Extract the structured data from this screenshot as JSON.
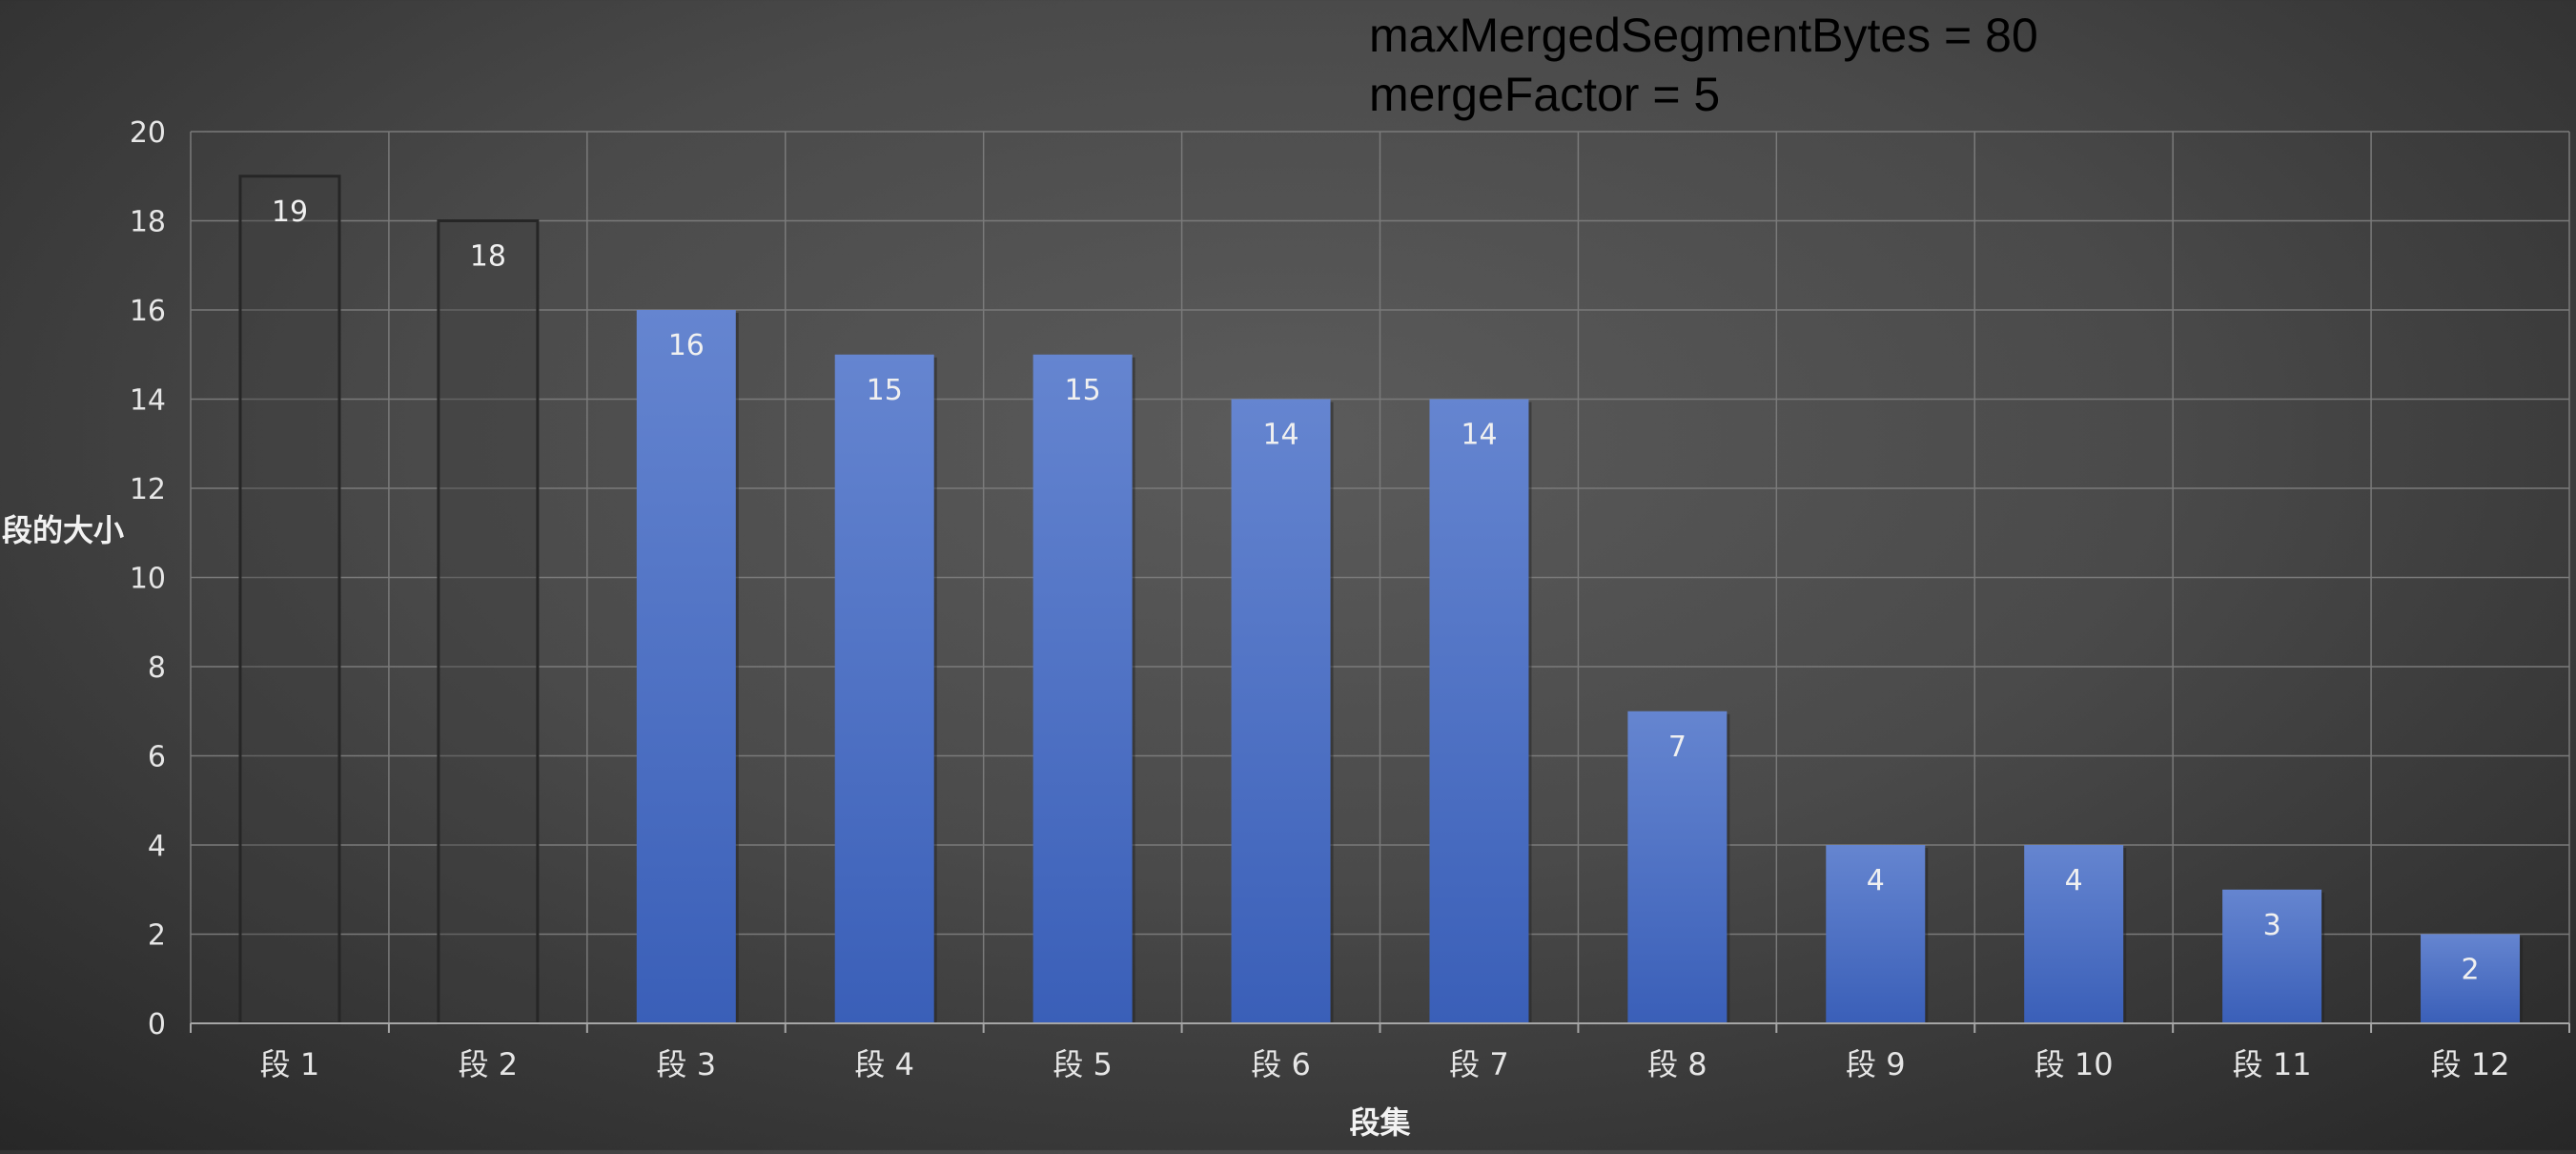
{
  "chart_data": {
    "type": "bar",
    "categories": [
      "段 1",
      "段 2",
      "段 3",
      "段 4",
      "段 5",
      "段 6",
      "段 7",
      "段 8",
      "段 9",
      "段 10",
      "段 11",
      "段 12"
    ],
    "values": [
      19,
      18,
      16,
      15,
      15,
      14,
      14,
      7,
      4,
      4,
      3,
      2
    ],
    "xlabel": "段集",
    "ylabel": "段的大小",
    "ylim": [
      0,
      20
    ],
    "yticks": [
      0,
      2,
      4,
      6,
      8,
      10,
      12,
      14,
      16,
      18,
      20
    ],
    "grid": true,
    "legend": "none",
    "annotations": [
      "maxMergedSegmentBytes = 80",
      "mergeFactor = 5"
    ],
    "bar_styles": [
      "dark",
      "dark",
      "blue",
      "blue",
      "blue",
      "blue",
      "blue",
      "blue",
      "blue",
      "blue",
      "blue",
      "blue"
    ],
    "colors": {
      "bar_blue_top": "#6585d0",
      "bar_blue_bottom": "#3a5fb8",
      "bar_dark_fill": "#3d3d3d",
      "bar_dark_edge": "#262626",
      "grid": "#7a7a7a",
      "axis": "#a6a6a6",
      "tick_text": "#e6e6e6",
      "annotation_text": "#000000"
    }
  }
}
